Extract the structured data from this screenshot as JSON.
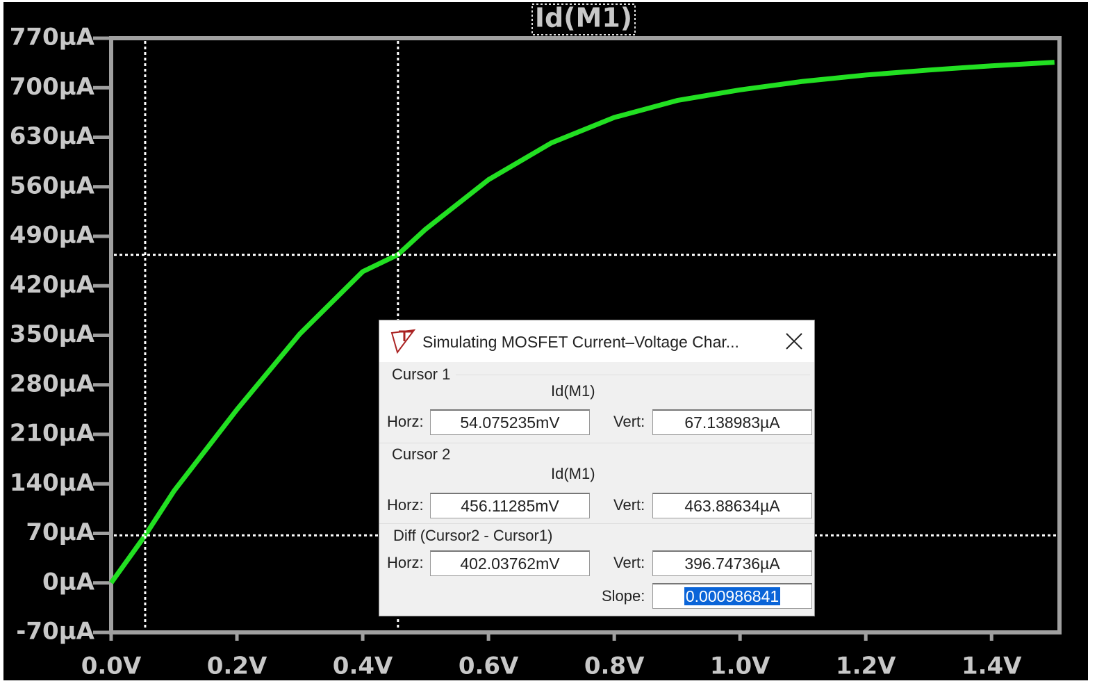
{
  "chart_data": {
    "type": "line",
    "x": [
      0,
      0.054,
      0.1,
      0.2,
      0.3,
      0.4,
      0.456,
      0.5,
      0.6,
      0.7,
      0.8,
      0.9,
      1.0,
      1.1,
      1.2,
      1.3,
      1.4,
      1.5
    ],
    "series": [
      {
        "name": "Id(M1)",
        "color": "#22e022",
        "values": [
          0,
          67,
          130,
          245,
          352,
          440,
          464,
          500,
          570,
          622,
          658,
          682,
          697,
          709,
          718,
          725,
          731,
          736
        ]
      }
    ],
    "xlim": [
      0,
      1.508
    ],
    "ylim": [
      -70,
      770
    ],
    "xticks": [
      {
        "value": 0,
        "label": "0.0V"
      },
      {
        "value": 0.2,
        "label": "0.2V"
      },
      {
        "value": 0.4,
        "label": "0.4V"
      },
      {
        "value": 0.6,
        "label": "0.6V"
      },
      {
        "value": 0.8,
        "label": "0.8V"
      },
      {
        "value": 1.0,
        "label": "1.0V"
      },
      {
        "value": 1.2,
        "label": "1.2V"
      },
      {
        "value": 1.4,
        "label": "1.4V"
      }
    ],
    "yticks": [
      {
        "value": 770,
        "label": "770µA"
      },
      {
        "value": 700,
        "label": "700µA"
      },
      {
        "value": 630,
        "label": "630µA"
      },
      {
        "value": 560,
        "label": "560µA"
      },
      {
        "value": 490,
        "label": "490µA"
      },
      {
        "value": 420,
        "label": "420µA"
      },
      {
        "value": 350,
        "label": "350µA"
      },
      {
        "value": 280,
        "label": "280µA"
      },
      {
        "value": 210,
        "label": "210µA"
      },
      {
        "value": 140,
        "label": "140µA"
      },
      {
        "value": 70,
        "label": "70µA"
      },
      {
        "value": 0,
        "label": "0µA"
      },
      {
        "value": -70,
        "label": "-70µA"
      }
    ],
    "cursors": [
      {
        "x": 0.054075235,
        "y": 67.138983
      },
      {
        "x": 0.45611285,
        "y": 463.88634
      }
    ]
  },
  "dialog": {
    "title": "Simulating MOSFET Current–Voltage Char...",
    "cursor1": {
      "label": "Cursor 1",
      "trace": "Id(M1)",
      "horz_label": "Horz:",
      "horz": "54.075235mV",
      "vert_label": "Vert:",
      "vert": "67.138983µA"
    },
    "cursor2": {
      "label": "Cursor 2",
      "trace": "Id(M1)",
      "horz_label": "Horz:",
      "horz": "456.11285mV",
      "vert_label": "Vert:",
      "vert": "463.88634µA"
    },
    "diff": {
      "label": "Diff (Cursor2 - Cursor1)",
      "horz_label": "Horz:",
      "horz": "402.03762mV",
      "vert_label": "Vert:",
      "vert": "396.74736µA",
      "slope_label": "Slope:",
      "slope": "0.000986841"
    }
  }
}
